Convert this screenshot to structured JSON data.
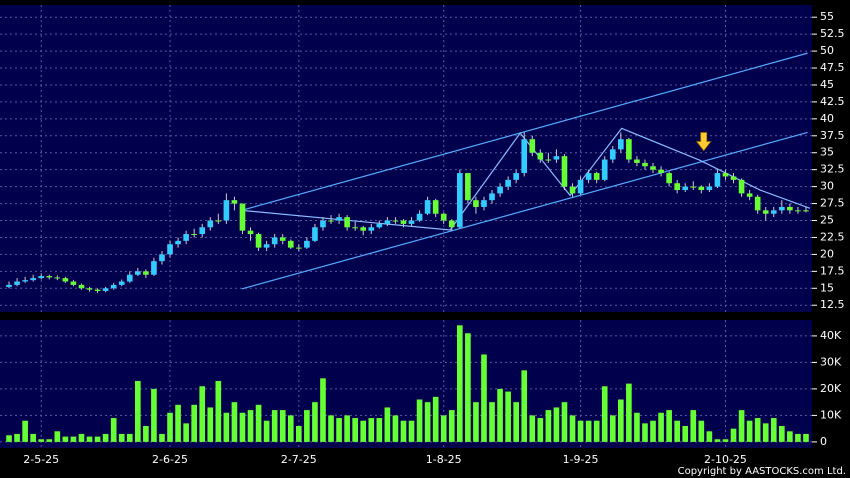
{
  "chart_data": {
    "type": "candlestick",
    "categories": [
      null,
      null,
      null,
      null,
      "2-5-25",
      null,
      null,
      null,
      null,
      null,
      null,
      null,
      null,
      null,
      null,
      null,
      null,
      null,
      null,
      null,
      "2-6-25",
      null,
      null,
      null,
      null,
      null,
      null,
      null,
      null,
      null,
      null,
      null,
      null,
      null,
      null,
      null,
      "2-7-25",
      null,
      null,
      null,
      null,
      null,
      null,
      null,
      null,
      null,
      null,
      null,
      null,
      null,
      null,
      null,
      null,
      null,
      "1-8-25",
      null,
      null,
      null,
      null,
      null,
      null,
      null,
      null,
      null,
      null,
      null,
      null,
      null,
      null,
      null,
      null,
      "1-9-25",
      null,
      null,
      null,
      null,
      null,
      null,
      null,
      null,
      null,
      null,
      null,
      null,
      null,
      null,
      null,
      null,
      null,
      "2-10-25",
      null,
      null,
      null,
      null,
      null,
      null,
      null,
      null,
      null,
      null
    ],
    "open": [
      15.2,
      15.5,
      16,
      16.2,
      16.5,
      16.8,
      16.6,
      16.5,
      16,
      15.5,
      15,
      14.8,
      14.6,
      15,
      15.5,
      16,
      17,
      17.5,
      17,
      19,
      20,
      21.5,
      22,
      23,
      23,
      24,
      25,
      25,
      28,
      27.5,
      23.5,
      23,
      21,
      21.5,
      22.5,
      22,
      21,
      21,
      22,
      24,
      25,
      25,
      25.5,
      24,
      24,
      23.5,
      24,
      24.5,
      25,
      25,
      24.5,
      25,
      26,
      28,
      26,
      25,
      24,
      32,
      28,
      27,
      28,
      29,
      30,
      31,
      32,
      37,
      35,
      34,
      34,
      34.5,
      30,
      29,
      31,
      32,
      31,
      34,
      35.5,
      37,
      34,
      33.5,
      33,
      32.5,
      32,
      30.5,
      29.5,
      30,
      30,
      29.5,
      30,
      32,
      31.5,
      31,
      29,
      28.5,
      26.5,
      26,
      26.5,
      27,
      26.5,
      26.5
    ],
    "high": [
      16,
      16.5,
      16.7,
      17,
      17.2,
      17,
      16.9,
      16.7,
      16.2,
      15.7,
      15.2,
      15,
      15.2,
      15.8,
      16.3,
      17.5,
      18,
      17.8,
      19.5,
      20.5,
      22,
      22.5,
      23.5,
      23.8,
      24.5,
      25.5,
      26,
      29,
      28.5,
      27.5,
      24,
      23.2,
      22,
      23,
      23,
      22.2,
      21.5,
      22.5,
      24.5,
      25.5,
      25.8,
      26,
      25.8,
      24.8,
      24.2,
      24.5,
      25,
      25.5,
      25.5,
      25.2,
      25.5,
      26.5,
      28.5,
      28.2,
      26.2,
      25.2,
      32.5,
      32,
      28.5,
      28.5,
      29.5,
      30.5,
      31.5,
      32.5,
      38,
      37.5,
      35.5,
      35,
      35.5,
      34.8,
      30.5,
      31.5,
      32.5,
      32.2,
      34.5,
      36,
      38,
      37.2,
      34.5,
      34,
      33.5,
      33,
      32.2,
      31,
      30.5,
      30.8,
      30.2,
      30.5,
      32.5,
      32.5,
      32,
      31.2,
      29.5,
      28.8,
      27,
      27,
      28,
      27.5,
      27,
      27
    ],
    "low": [
      15,
      15.3,
      15.8,
      16,
      16.3,
      16.3,
      16.2,
      15.8,
      15.3,
      14.8,
      14.5,
      14.3,
      14.4,
      14.8,
      15.3,
      15.8,
      16.8,
      16.5,
      16.8,
      18.5,
      19.5,
      21,
      21.5,
      22.5,
      22.5,
      23.5,
      24.5,
      24.5,
      26.5,
      23,
      22,
      20.5,
      20.5,
      21,
      21.5,
      20.8,
      20.5,
      20.8,
      21.8,
      23.5,
      24.5,
      24.5,
      23.5,
      23.5,
      22.8,
      23,
      23.8,
      24.2,
      24.5,
      24,
      24.2,
      24.8,
      25.8,
      25.5,
      24.5,
      23.5,
      23.8,
      27.5,
      26,
      26.5,
      27.5,
      28.5,
      29.5,
      30.5,
      31.5,
      34.5,
      33.5,
      33.5,
      33.5,
      29.5,
      28.5,
      28.8,
      30.5,
      30.5,
      30.8,
      33.5,
      35,
      33.5,
      33,
      32.5,
      32,
      31.5,
      30,
      29,
      29.2,
      29.5,
      29,
      29.2,
      29.8,
      31,
      30.5,
      28.5,
      28,
      26,
      25,
      25.5,
      26,
      26,
      26,
      26.2
    ],
    "close": [
      15.5,
      16,
      16.2,
      16.5,
      16.8,
      16.6,
      16.5,
      16,
      15.5,
      15,
      14.8,
      14.6,
      15,
      15.5,
      16,
      17,
      17.5,
      17,
      19,
      20,
      21.5,
      22,
      23,
      23,
      24,
      25,
      25,
      28,
      27.5,
      23.5,
      23,
      21,
      21.5,
      22.5,
      22,
      21,
      21,
      22,
      24,
      25,
      25,
      25.5,
      24,
      24,
      23.5,
      24,
      24.5,
      25,
      25,
      24.5,
      25,
      26,
      28,
      26,
      25,
      24,
      32,
      28,
      27,
      28,
      29,
      30,
      31,
      32,
      37,
      35,
      34,
      34,
      34.5,
      30,
      29,
      31,
      32,
      31,
      34,
      35.5,
      37,
      34,
      33.5,
      33,
      32.5,
      32,
      30.5,
      29.5,
      30,
      30,
      29.5,
      30,
      32,
      31.5,
      31,
      29,
      28.5,
      26.5,
      26,
      26.5,
      27,
      26.5,
      26.5,
      26.5
    ],
    "volume": [
      2500,
      3000,
      8000,
      3000,
      1000,
      1000,
      4000,
      2000,
      2000,
      3000,
      2000,
      2000,
      3000,
      9000,
      3000,
      3000,
      23000,
      6000,
      20000,
      3000,
      11000,
      14000,
      7000,
      14000,
      21000,
      13000,
      23000,
      11000,
      15000,
      11000,
      12000,
      14000,
      8000,
      12000,
      12000,
      10000,
      6000,
      12000,
      15000,
      24000,
      10000,
      9000,
      10000,
      9000,
      8000,
      9000,
      9000,
      13000,
      10000,
      8000,
      8000,
      16000,
      15000,
      17000,
      10000,
      12000,
      44000,
      41000,
      15000,
      33000,
      15000,
      20000,
      19000,
      15000,
      27000,
      10000,
      9000,
      12000,
      13000,
      15000,
      10000,
      8000,
      8000,
      8000,
      21000,
      10000,
      16000,
      22000,
      11000,
      7000,
      8000,
      11000,
      12000,
      8000,
      6000,
      12000,
      8000,
      4000,
      1000,
      1000,
      5000,
      12000,
      8000,
      9000,
      7000,
      9000,
      6000,
      4000,
      3000,
      3000
    ],
    "up_color": "#33ccff",
    "down_color": "#66ff33",
    "volume_color": "#66ff33",
    "ylim": [
      11.5,
      56.8
    ],
    "yticks": [
      12.5,
      15,
      17.5,
      20,
      22.5,
      25,
      27.5,
      30,
      32.5,
      35,
      37.5,
      40,
      42.5,
      45,
      47.5,
      50,
      52.5,
      55
    ],
    "y2lim": [
      -2300,
      46000
    ],
    "y2ticks": [
      0,
      {
        "value": 10000,
        "label": "10K"
      },
      {
        "value": 20000,
        "label": "20K"
      },
      {
        "value": 30000,
        "label": "30K"
      },
      {
        "value": 40000,
        "label": "40K"
      }
    ],
    "grid": true,
    "trendlines": [
      {
        "color": "#55aaff",
        "x": [
          28.9,
          99.2
        ],
        "y": [
          26.5,
          49.7
        ]
      },
      {
        "color": "#55aaff",
        "x": [
          28.9,
          99.2
        ],
        "y": [
          14.9,
          38
        ]
      },
      {
        "color": "#88bbff",
        "x": [
          28.9,
          54.8,
          63.5,
          69.7,
          76.1,
          85.8,
          93.3,
          99.5
        ],
        "y": [
          26.5,
          23.6,
          37.9,
          28.7,
          38.6,
          33.9,
          29.5,
          26.8
        ]
      }
    ],
    "arrow": {
      "x": 86.3,
      "y": 36.5,
      "color": "#ffcc33"
    },
    "copyright": "Copyright by AASTOCKS.com Ltd."
  }
}
